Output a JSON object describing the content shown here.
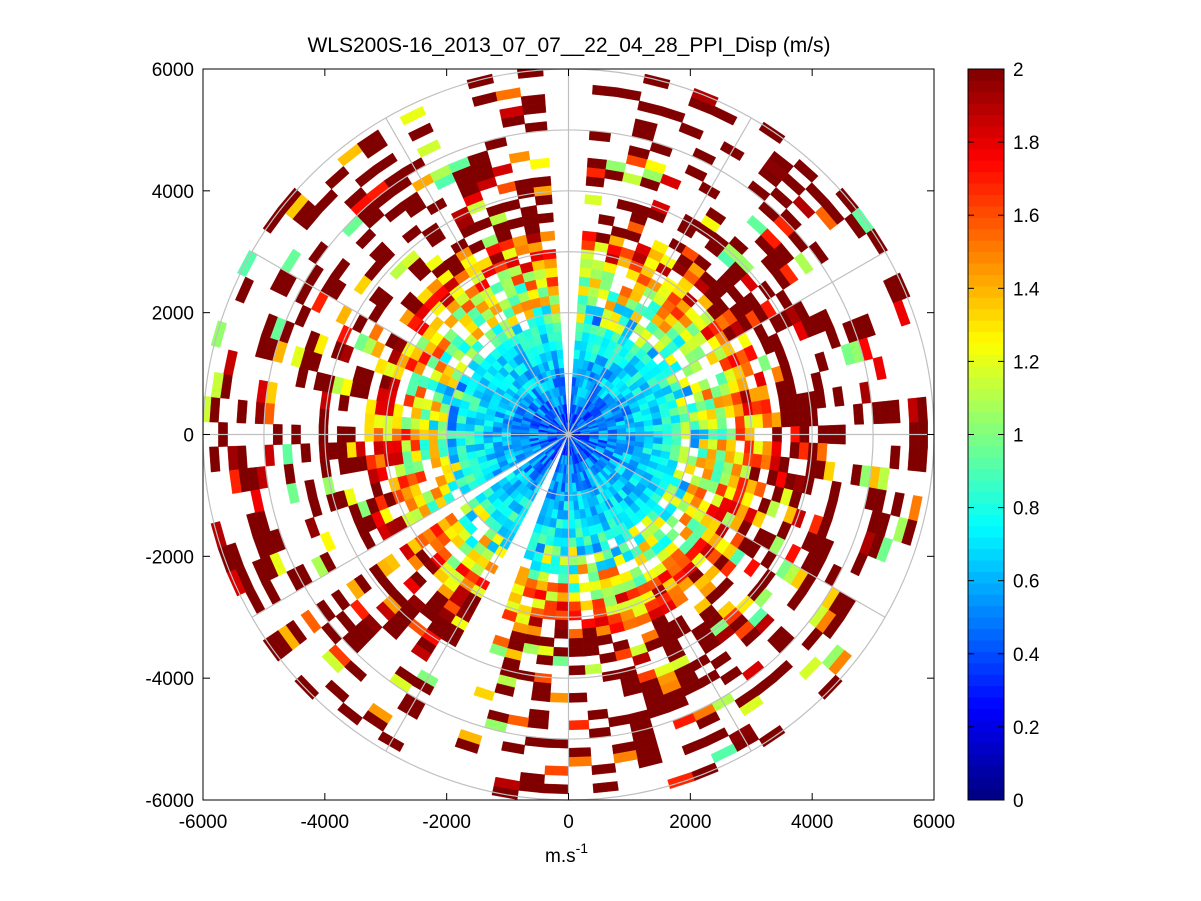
{
  "chart_data": {
    "type": "heatmap",
    "subtype": "polar-ppi",
    "title": "WLS200S-16_2013_07_07__22_04_28_PPI_Disp (m/s)",
    "xlabel": "m.s",
    "xlabel_superscript": "-1",
    "ylabel": "",
    "xlim": [
      -6000,
      6000
    ],
    "ylim": [
      -6000,
      6000
    ],
    "x_ticks": [
      "-6000",
      "-4000",
      "-2000",
      "0",
      "2000",
      "4000",
      "6000"
    ],
    "y_ticks": [
      "6000",
      "4000",
      "2000",
      "0",
      "-2000",
      "-4000",
      "-6000"
    ],
    "x_tick_values": [
      -6000,
      -4000,
      -2000,
      0,
      2000,
      4000,
      6000
    ],
    "y_tick_values": [
      6000,
      4000,
      2000,
      0,
      -2000,
      -4000,
      -6000
    ],
    "range_rings": [
      1000,
      2000,
      3000,
      4000,
      5000,
      6000
    ],
    "spoke_angles_deg": [
      0,
      30,
      60,
      90,
      120,
      150,
      180,
      210,
      240,
      270,
      300,
      330
    ],
    "max_range": 6000,
    "range_gate": 150,
    "azimuth_step_deg": 4,
    "gaps_deg": [
      {
        "from": -3,
        "to": 3
      },
      {
        "from": 201,
        "to": 209
      },
      {
        "from": 236,
        "to": 241
      }
    ],
    "variable": "Disp",
    "units": "m/s",
    "colorbar": {
      "colormap": "jet",
      "range": [
        0,
        2
      ],
      "ticks": [
        "2",
        "1.8",
        "1.6",
        "1.4",
        "1.2",
        "1",
        "0.8",
        "0.6",
        "0.4",
        "0.2",
        "0"
      ],
      "tick_values": [
        2,
        1.8,
        1.6,
        1.4,
        1.2,
        1,
        0.8,
        0.6,
        0.4,
        0.2,
        0
      ]
    },
    "value_profile": {
      "description": "dispersion increases with range: ~0.3-0.8 near center, ~0.8-1.4 mid-range, saturating at 2 beyond ~3500 m",
      "inner_radius": 1800,
      "mid_radius": 3300
    }
  }
}
